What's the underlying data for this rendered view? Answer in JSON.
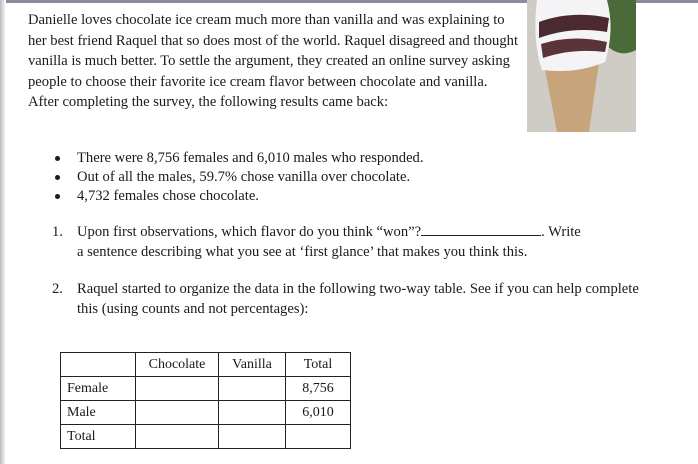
{
  "intro": "Danielle loves chocolate ice cream much more than vanilla and was explaining to her best friend Raquel that so does most of the world. Raquel disagreed and thought vanilla is much better. To settle the argument, they created an online survey asking people to choose their favorite ice cream flavor between chocolate and vanilla. After completing the survey, the following results came back:",
  "bullets": [
    "There were 8,756 females and 6,010 males who responded.",
    "Out of all the males, 59.7% chose vanilla over chocolate.",
    "4,732 females chose chocolate."
  ],
  "q1": {
    "num": "1.",
    "text_a": "Upon first observations, which flavor do you think “won”?",
    "text_b": ". Write",
    "text_c": "a sentence describing what you see at ‘first glance’ that makes you think this."
  },
  "q2": {
    "num": "2.",
    "text": "Raquel started to organize the data in the following two-way table. See if you can help complete this (using counts and not percentages):"
  },
  "table": {
    "headers": [
      "",
      "Chocolate",
      "Vanilla",
      "Total"
    ],
    "rows": [
      [
        "Female",
        "",
        "",
        "8,756"
      ],
      [
        "Male",
        "",
        "",
        "6,010"
      ],
      [
        "Total",
        "",
        "",
        ""
      ]
    ]
  }
}
